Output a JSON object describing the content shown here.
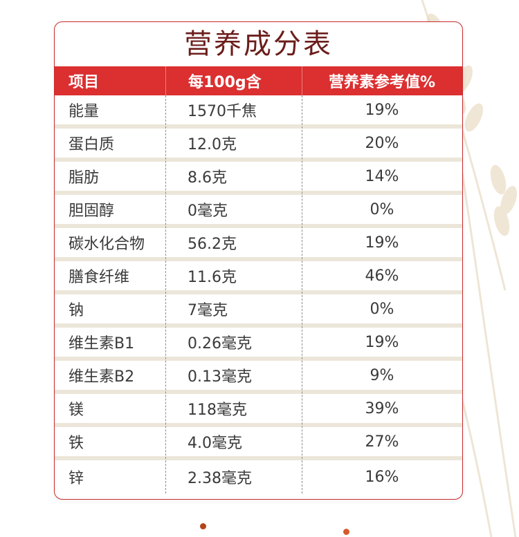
{
  "table": {
    "title": "营养成分表",
    "headers": [
      "项目",
      "每100g含",
      "营养素参考值%"
    ],
    "rows": [
      [
        "能量",
        "1570千焦",
        "19%"
      ],
      [
        "蛋白质",
        "12.0克",
        "20%"
      ],
      [
        "脂肪",
        "8.6克",
        "14%"
      ],
      [
        "胆固醇",
        "0毫克",
        "0%"
      ],
      [
        "碳水化合物",
        "56.2克",
        "19%"
      ],
      [
        "膳食纤维",
        "11.6克",
        "46%"
      ],
      [
        "钠",
        "7毫克",
        "0%"
      ],
      [
        "维生素B1",
        "0.26毫克",
        "19%"
      ],
      [
        "维生素B2",
        "0.13毫克",
        "9%"
      ],
      [
        "镁",
        "118毫克",
        "39%"
      ],
      [
        "铁",
        "4.0毫克",
        "27%"
      ],
      [
        "锌",
        "2.38毫克",
        "16%"
      ]
    ]
  },
  "colors": {
    "title_text": "#6b1e1b",
    "header_bg": "#db2f30",
    "row_separator": "#ebe6d9",
    "card_border": "#c82a2c"
  },
  "decor": {
    "background_icon": "wheat-icon"
  }
}
